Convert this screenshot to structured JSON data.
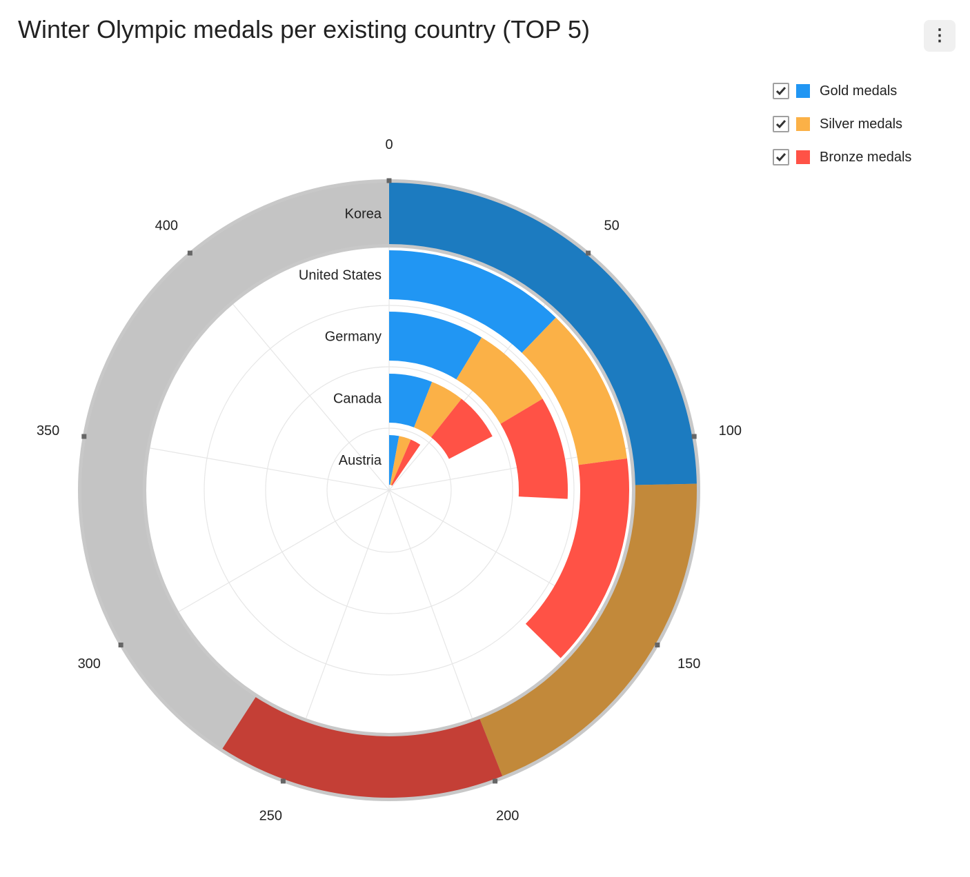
{
  "title": "Winter Olympic medals per existing country (TOP 5)",
  "menu_icon": "vertical-ellipsis-icon",
  "colors": {
    "gold": "#2196f3",
    "silver": "#fbb147",
    "bronze": "#ff5246",
    "outer_gold": "#1c7bc0",
    "outer_silver": "#c2893a",
    "outer_bronze": "#c43f36",
    "outer_remaining": "#c4c4c4"
  },
  "legend": [
    {
      "label": "Gold medals",
      "color": "#2196f3",
      "checked": true
    },
    {
      "label": "Silver medals",
      "color": "#fbb147",
      "checked": true
    },
    {
      "label": "Bronze medals",
      "color": "#ff5246",
      "checked": true
    }
  ],
  "chart_data": {
    "type": "radial-stacked-bar",
    "title": "Winter Olympic medals per existing country (TOP 5)",
    "angular_axis": {
      "min": 0,
      "max": 450,
      "ticks": [
        "0",
        "50",
        "100",
        "150",
        "200",
        "250",
        "300",
        "350",
        "400"
      ]
    },
    "categories": [
      "Austria",
      "Canada",
      "Germany",
      "United States",
      "Korea"
    ],
    "series": [
      {
        "name": "Gold medals",
        "values": [
          13,
          27,
          39,
          55,
          111
        ]
      },
      {
        "name": "Silver medals",
        "values": [
          16,
          21,
          35,
          48,
          87
        ]
      },
      {
        "name": "Bronze medals",
        "values": [
          14,
          30,
          42,
          65,
          68
        ]
      }
    ]
  }
}
